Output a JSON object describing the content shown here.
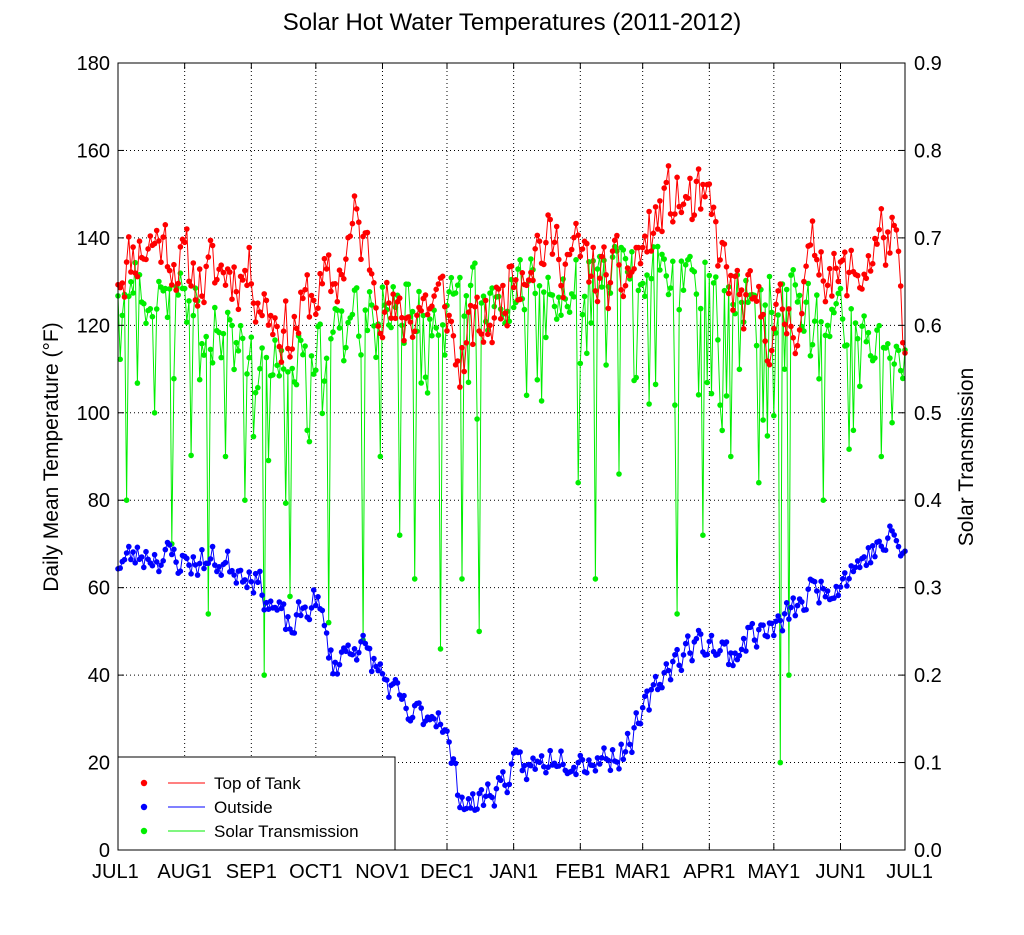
{
  "chart_data": {
    "type": "line",
    "title": "Solar Hot Water Temperatures (2011-2012)",
    "ylabel": "Daily Mean Temperature (°F)",
    "y2label": "Solar Transmission",
    "ylim": [
      0,
      180
    ],
    "y2lim": [
      0.0,
      0.9
    ],
    "xlim": [
      0,
      366
    ],
    "grid": true,
    "legend_position": "bottom-left",
    "yticks": [
      "0",
      "20",
      "40",
      "60",
      "80",
      "100",
      "120",
      "140",
      "160",
      "180"
    ],
    "y2ticks": [
      "0.0",
      "0.1",
      "0.2",
      "0.3",
      "0.4",
      "0.5",
      "0.6",
      "0.7",
      "0.8",
      "0.9"
    ],
    "xticks": [
      {
        "day": 0,
        "label": "JUL1"
      },
      {
        "day": 31,
        "label": "AUG1"
      },
      {
        "day": 62,
        "label": "SEP1"
      },
      {
        "day": 92,
        "label": "OCT1"
      },
      {
        "day": 123,
        "label": "NOV1"
      },
      {
        "day": 153,
        "label": "DEC1"
      },
      {
        "day": 184,
        "label": "JAN1"
      },
      {
        "day": 215,
        "label": "FEB1"
      },
      {
        "day": 244,
        "label": "MAR1"
      },
      {
        "day": 275,
        "label": "APR1"
      },
      {
        "day": 305,
        "label": "MAY1"
      },
      {
        "day": 336,
        "label": "JUN1"
      },
      {
        "day": 366,
        "label": "JUL1"
      }
    ],
    "series": [
      {
        "name": "Top of Tank",
        "axis": "left",
        "color": "#ff0000",
        "anchors": [
          [
            0,
            133
          ],
          [
            10,
            138
          ],
          [
            20,
            140
          ],
          [
            31,
            133
          ],
          [
            40,
            130
          ],
          [
            50,
            133
          ],
          [
            62,
            132
          ],
          [
            70,
            124
          ],
          [
            80,
            118
          ],
          [
            92,
            128
          ],
          [
            100,
            128
          ],
          [
            110,
            143
          ],
          [
            123,
            128
          ],
          [
            130,
            119
          ],
          [
            140,
            125
          ],
          [
            153,
            125
          ],
          [
            158,
            110
          ],
          [
            165,
            118
          ],
          [
            175,
            122
          ],
          [
            184,
            133
          ],
          [
            195,
            139
          ],
          [
            205,
            137
          ],
          [
            215,
            135
          ],
          [
            225,
            130
          ],
          [
            235,
            130
          ],
          [
            244,
            137
          ],
          [
            255,
            148
          ],
          [
            265,
            148
          ],
          [
            275,
            145
          ],
          [
            285,
            128
          ],
          [
            295,
            122
          ],
          [
            305,
            120
          ],
          [
            315,
            122
          ],
          [
            325,
            138
          ],
          [
            336,
            130
          ],
          [
            345,
            132
          ],
          [
            355,
            140
          ],
          [
            361,
            140
          ],
          [
            366,
            110
          ]
        ],
        "amplitude": 13,
        "seed": 11
      },
      {
        "name": "Outside",
        "axis": "left",
        "color": "#0000ff",
        "anchors": [
          [
            0,
            66
          ],
          [
            15,
            68
          ],
          [
            31,
            66
          ],
          [
            45,
            66
          ],
          [
            62,
            64
          ],
          [
            70,
            57
          ],
          [
            80,
            50
          ],
          [
            92,
            58
          ],
          [
            100,
            42
          ],
          [
            110,
            48
          ],
          [
            123,
            40
          ],
          [
            135,
            30
          ],
          [
            150,
            32
          ],
          [
            158,
            14
          ],
          [
            165,
            10
          ],
          [
            175,
            14
          ],
          [
            184,
            18
          ],
          [
            195,
            19
          ],
          [
            205,
            23
          ],
          [
            215,
            21
          ],
          [
            225,
            21
          ],
          [
            235,
            23
          ],
          [
            244,
            30
          ],
          [
            255,
            42
          ],
          [
            265,
            46
          ],
          [
            275,
            48
          ],
          [
            285,
            44
          ],
          [
            295,
            50
          ],
          [
            305,
            50
          ],
          [
            315,
            55
          ],
          [
            325,
            60
          ],
          [
            336,
            62
          ],
          [
            350,
            68
          ],
          [
            360,
            71
          ],
          [
            366,
            68
          ]
        ],
        "amplitude": 6,
        "seed": 23
      },
      {
        "name": "Solar Transmission",
        "axis": "right",
        "color": "#00ee00",
        "anchors": [
          [
            0,
            0.65
          ],
          [
            31,
            0.62
          ],
          [
            62,
            0.56
          ],
          [
            92,
            0.58
          ],
          [
            110,
            0.62
          ],
          [
            123,
            0.63
          ],
          [
            153,
            0.62
          ],
          [
            184,
            0.65
          ],
          [
            215,
            0.65
          ],
          [
            244,
            0.66
          ],
          [
            275,
            0.66
          ],
          [
            305,
            0.63
          ],
          [
            336,
            0.6
          ],
          [
            366,
            0.56
          ]
        ],
        "dips": [
          [
            4,
            0.4
          ],
          [
            17,
            0.5
          ],
          [
            25,
            0.35
          ],
          [
            42,
            0.27
          ],
          [
            50,
            0.45
          ],
          [
            59,
            0.4
          ],
          [
            68,
            0.2
          ],
          [
            80,
            0.29
          ],
          [
            88,
            0.48
          ],
          [
            98,
            0.26
          ],
          [
            114,
            0.24
          ],
          [
            122,
            0.45
          ],
          [
            131,
            0.36
          ],
          [
            138,
            0.31
          ],
          [
            150,
            0.23
          ],
          [
            160,
            0.31
          ],
          [
            168,
            0.25
          ],
          [
            190,
            0.52
          ],
          [
            214,
            0.42
          ],
          [
            222,
            0.31
          ],
          [
            233,
            0.43
          ],
          [
            247,
            0.51
          ],
          [
            260,
            0.27
          ],
          [
            272,
            0.36
          ],
          [
            285,
            0.45
          ],
          [
            298,
            0.42
          ],
          [
            308,
            0.1
          ],
          [
            312,
            0.2
          ],
          [
            328,
            0.4
          ],
          [
            342,
            0.48
          ],
          [
            355,
            0.45
          ]
        ],
        "amplitude": 0.06,
        "seed": 41
      }
    ]
  }
}
